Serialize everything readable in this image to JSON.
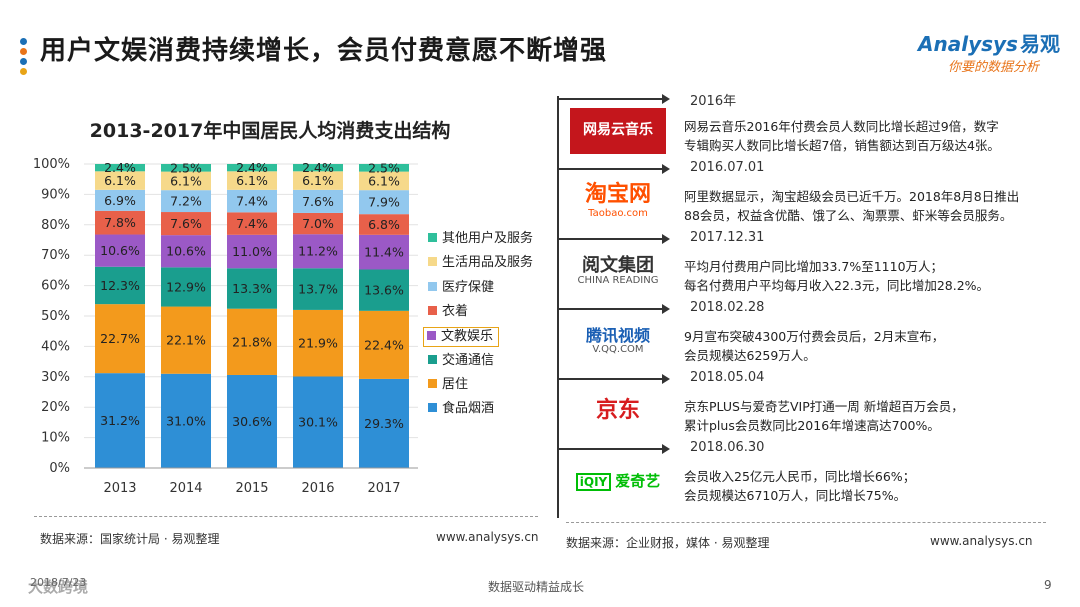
{
  "header": {
    "title": "用户文娱消费持续增长，会员付费意愿不断增强",
    "brand_en": "Analysys",
    "brand_cn": "易观",
    "slogan": "你要的数据分析",
    "dot_colors": [
      "#1b6fb5",
      "#e8741a",
      "#1b6fb5",
      "#e8a417"
    ]
  },
  "chart_data": {
    "type": "bar",
    "stacked": true,
    "title": "2013-2017年中国居民人均消费支出结构",
    "categories": [
      "2013",
      "2014",
      "2015",
      "2016",
      "2017"
    ],
    "ylim": [
      0,
      100
    ],
    "yticks": [
      "0%",
      "10%",
      "20%",
      "30%",
      "40%",
      "50%",
      "60%",
      "70%",
      "80%",
      "90%",
      "100%"
    ],
    "series": [
      {
        "name": "食品烟酒",
        "color": "#2e8fd6",
        "values": [
          31.2,
          31.0,
          30.6,
          30.1,
          29.3
        ]
      },
      {
        "name": "居住",
        "color": "#f39a1c",
        "values": [
          22.7,
          22.1,
          21.8,
          21.9,
          22.4
        ]
      },
      {
        "name": "交通通信",
        "color": "#1a9e8e",
        "values": [
          12.3,
          12.9,
          13.3,
          13.7,
          13.6
        ]
      },
      {
        "name": "文教娱乐",
        "color": "#9b59c6",
        "values": [
          10.6,
          10.6,
          11.0,
          11.2,
          11.4
        ]
      },
      {
        "name": "衣着",
        "color": "#e8604a",
        "values": [
          7.8,
          7.6,
          7.4,
          7.0,
          6.8
        ]
      },
      {
        "name": "医疗保健",
        "color": "#92c8ee",
        "values": [
          6.9,
          7.2,
          7.4,
          7.6,
          7.9
        ]
      },
      {
        "name": "生活用品及服务",
        "color": "#f6d98a",
        "values": [
          6.1,
          6.1,
          6.1,
          6.1,
          6.1
        ]
      },
      {
        "name": "其他用户及服务",
        "color": "#2fbf9b",
        "values": [
          2.4,
          2.5,
          2.4,
          2.4,
          2.5
        ]
      }
    ],
    "labels": [
      [
        "31.2%",
        "31.0%",
        "30.6%",
        "30.1%",
        "29.3%"
      ],
      [
        "22.7%",
        "22.1%",
        "21.8%",
        "21.9%",
        "22.4%"
      ],
      [
        "12.3%",
        "12.9%",
        "13.3%",
        "13.7%",
        "13.6%"
      ],
      [
        "10.6%",
        "10.6%",
        "11.0%",
        "11.2%",
        "11.4%"
      ],
      [
        "7.8%",
        "7.6%",
        "7.4%",
        "7.0%",
        "6.8%"
      ],
      [
        "6.9%",
        "7.2%",
        "7.4%",
        "7.6%",
        "7.9%"
      ],
      [
        "6.1%",
        "6.1%",
        "6.1%",
        "6.1%",
        "6.1%"
      ],
      [
        "2.4%",
        "2.5%",
        "2.4%",
        "2.4%",
        "2.5%"
      ]
    ],
    "legend_order": [
      "其他用户及服务",
      "生活用品及服务",
      "医疗保健",
      "衣着",
      "文教娱乐",
      "交通通信",
      "居住",
      "食品烟酒"
    ],
    "highlighted_legend": "文教娱乐"
  },
  "legend": [
    {
      "label": "其他用户及服务",
      "color": "#2fbf9b"
    },
    {
      "label": "生活用品及服务",
      "color": "#f6d98a"
    },
    {
      "label": "医疗保健",
      "color": "#92c8ee"
    },
    {
      "label": "衣着",
      "color": "#e8604a"
    },
    {
      "label": "文教娱乐",
      "color": "#9b59c6"
    },
    {
      "label": "交通通信",
      "color": "#1a9e8e"
    },
    {
      "label": "居住",
      "color": "#f39a1c"
    },
    {
      "label": "食品烟酒",
      "color": "#2e8fd6"
    }
  ],
  "left_source": {
    "text": "数据来源：国家统计局 · 易观整理",
    "url": "www.analysys.cn"
  },
  "timeline": [
    {
      "date": "2016年",
      "logo": "网易云音乐",
      "lines": [
        "网易云音乐2016年付费会员人数同比增长超过9倍，数字",
        "专辑购买人数同比增长超7倍，销售额达到百万级达4张。"
      ]
    },
    {
      "date": "2016.07.01",
      "logo": "淘宝网",
      "logo_sub": "Taobao.com",
      "lines": [
        "阿里数据显示，淘宝超级会员已近千万。2018年8月8日推出",
        "88会员，权益含优酷、饿了么、淘票票、虾米等会员服务。"
      ]
    },
    {
      "date": "2017.12.31",
      "logo": "阅文集团",
      "logo_sub": "CHINA READING",
      "lines": [
        "平均月付费用户同比增加33.7%至1110万人；",
        "每名付费用户平均每月收入22.3元，同比增加28.2%。"
      ]
    },
    {
      "date": "2018.02.28",
      "logo": "腾讯视频",
      "logo_sub": "V.QQ.COM",
      "lines": [
        "9月宣布突破4300万付费会员后，2月末宣布，",
        "会员规模达6259万人。"
      ]
    },
    {
      "date": "2018.05.04",
      "logo": "京东",
      "lines": [
        "京东PLUS与爱奇艺VIP打通一周 新增超百万会员，",
        "累计plus会员数同比2016年增速高达700%。"
      ]
    },
    {
      "date": "2018.06.30",
      "logo": "爱奇艺",
      "logo_tag": "iQIY",
      "lines": [
        "会员收入25亿元人民币，同比增长66%；",
        "会员规模达6710万人，同比增长75%。"
      ]
    }
  ],
  "right_source": {
    "text": "数据来源：企业财报，媒体 · 易观整理",
    "url": "www.analysys.cn"
  },
  "footer": {
    "watermark": "大数跨境",
    "date": "2018/7/23",
    "center": "数据驱动精益成长",
    "page": "9"
  }
}
